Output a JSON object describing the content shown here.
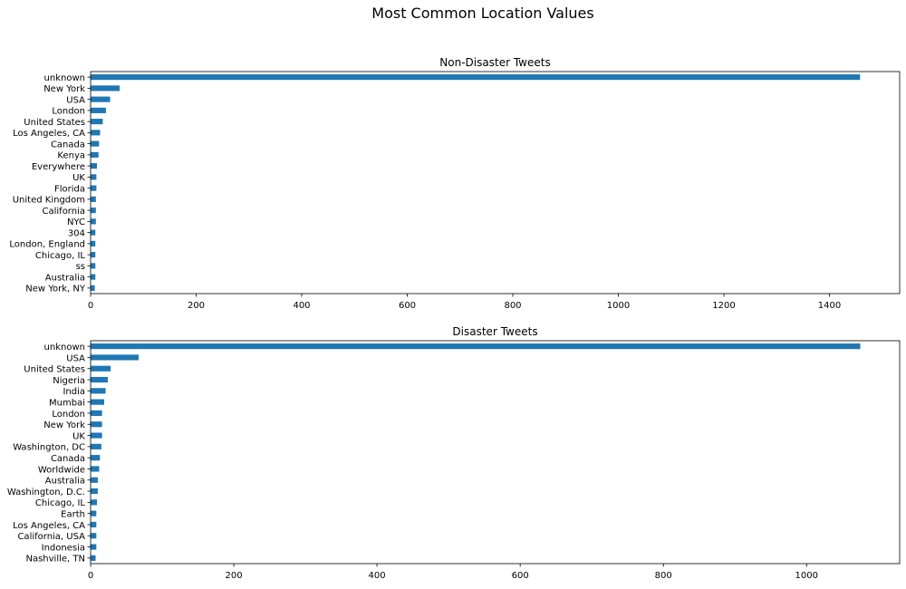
{
  "figure": {
    "suptitle": "Most Common Location Values"
  },
  "colors": {
    "bar": "#1f77b4",
    "axis": "#000000",
    "background": "#ffffff"
  },
  "chart_data": [
    {
      "type": "bar",
      "orientation": "horizontal",
      "title": "Non-Disaster Tweets",
      "xlabel": "",
      "ylabel": "",
      "xlim": [
        0,
        1533
      ],
      "xticks": [
        0,
        200,
        400,
        600,
        800,
        1000,
        1200,
        1400
      ],
      "grid": false,
      "categories": [
        "unknown",
        "New York",
        "USA",
        "London",
        "United States",
        "Los Angeles, CA",
        "Canada",
        "Kenya",
        "Everywhere",
        "UK",
        "Florida",
        "United Kingdom",
        "California",
        "NYC",
        "304",
        "London, England",
        "Chicago, IL",
        "ss",
        "Australia",
        "New York, NY"
      ],
      "values": [
        1458,
        55,
        37,
        29,
        23,
        18,
        16,
        15,
        12,
        11,
        11,
        10,
        10,
        10,
        9,
        9,
        9,
        9,
        9,
        8
      ]
    },
    {
      "type": "bar",
      "orientation": "horizontal",
      "title": "Disaster Tweets",
      "xlabel": "",
      "ylabel": "",
      "xlim": [
        0,
        1130
      ],
      "xticks": [
        0,
        200,
        400,
        600,
        800,
        1000
      ],
      "grid": false,
      "categories": [
        "unknown",
        "USA",
        "United States",
        "Nigeria",
        "India",
        "Mumbai",
        "London",
        "New York",
        "UK",
        "Washington, DC",
        "Canada",
        "Worldwide",
        "Australia",
        "Washington, D.C.",
        "Chicago, IL",
        "Earth",
        "Los Angeles, CA",
        "California, USA",
        "Indonesia",
        "Nashville, TN"
      ],
      "values": [
        1075,
        67,
        28,
        24,
        21,
        19,
        16,
        16,
        16,
        15,
        13,
        12,
        10,
        10,
        9,
        8,
        8,
        8,
        8,
        7
      ]
    }
  ]
}
